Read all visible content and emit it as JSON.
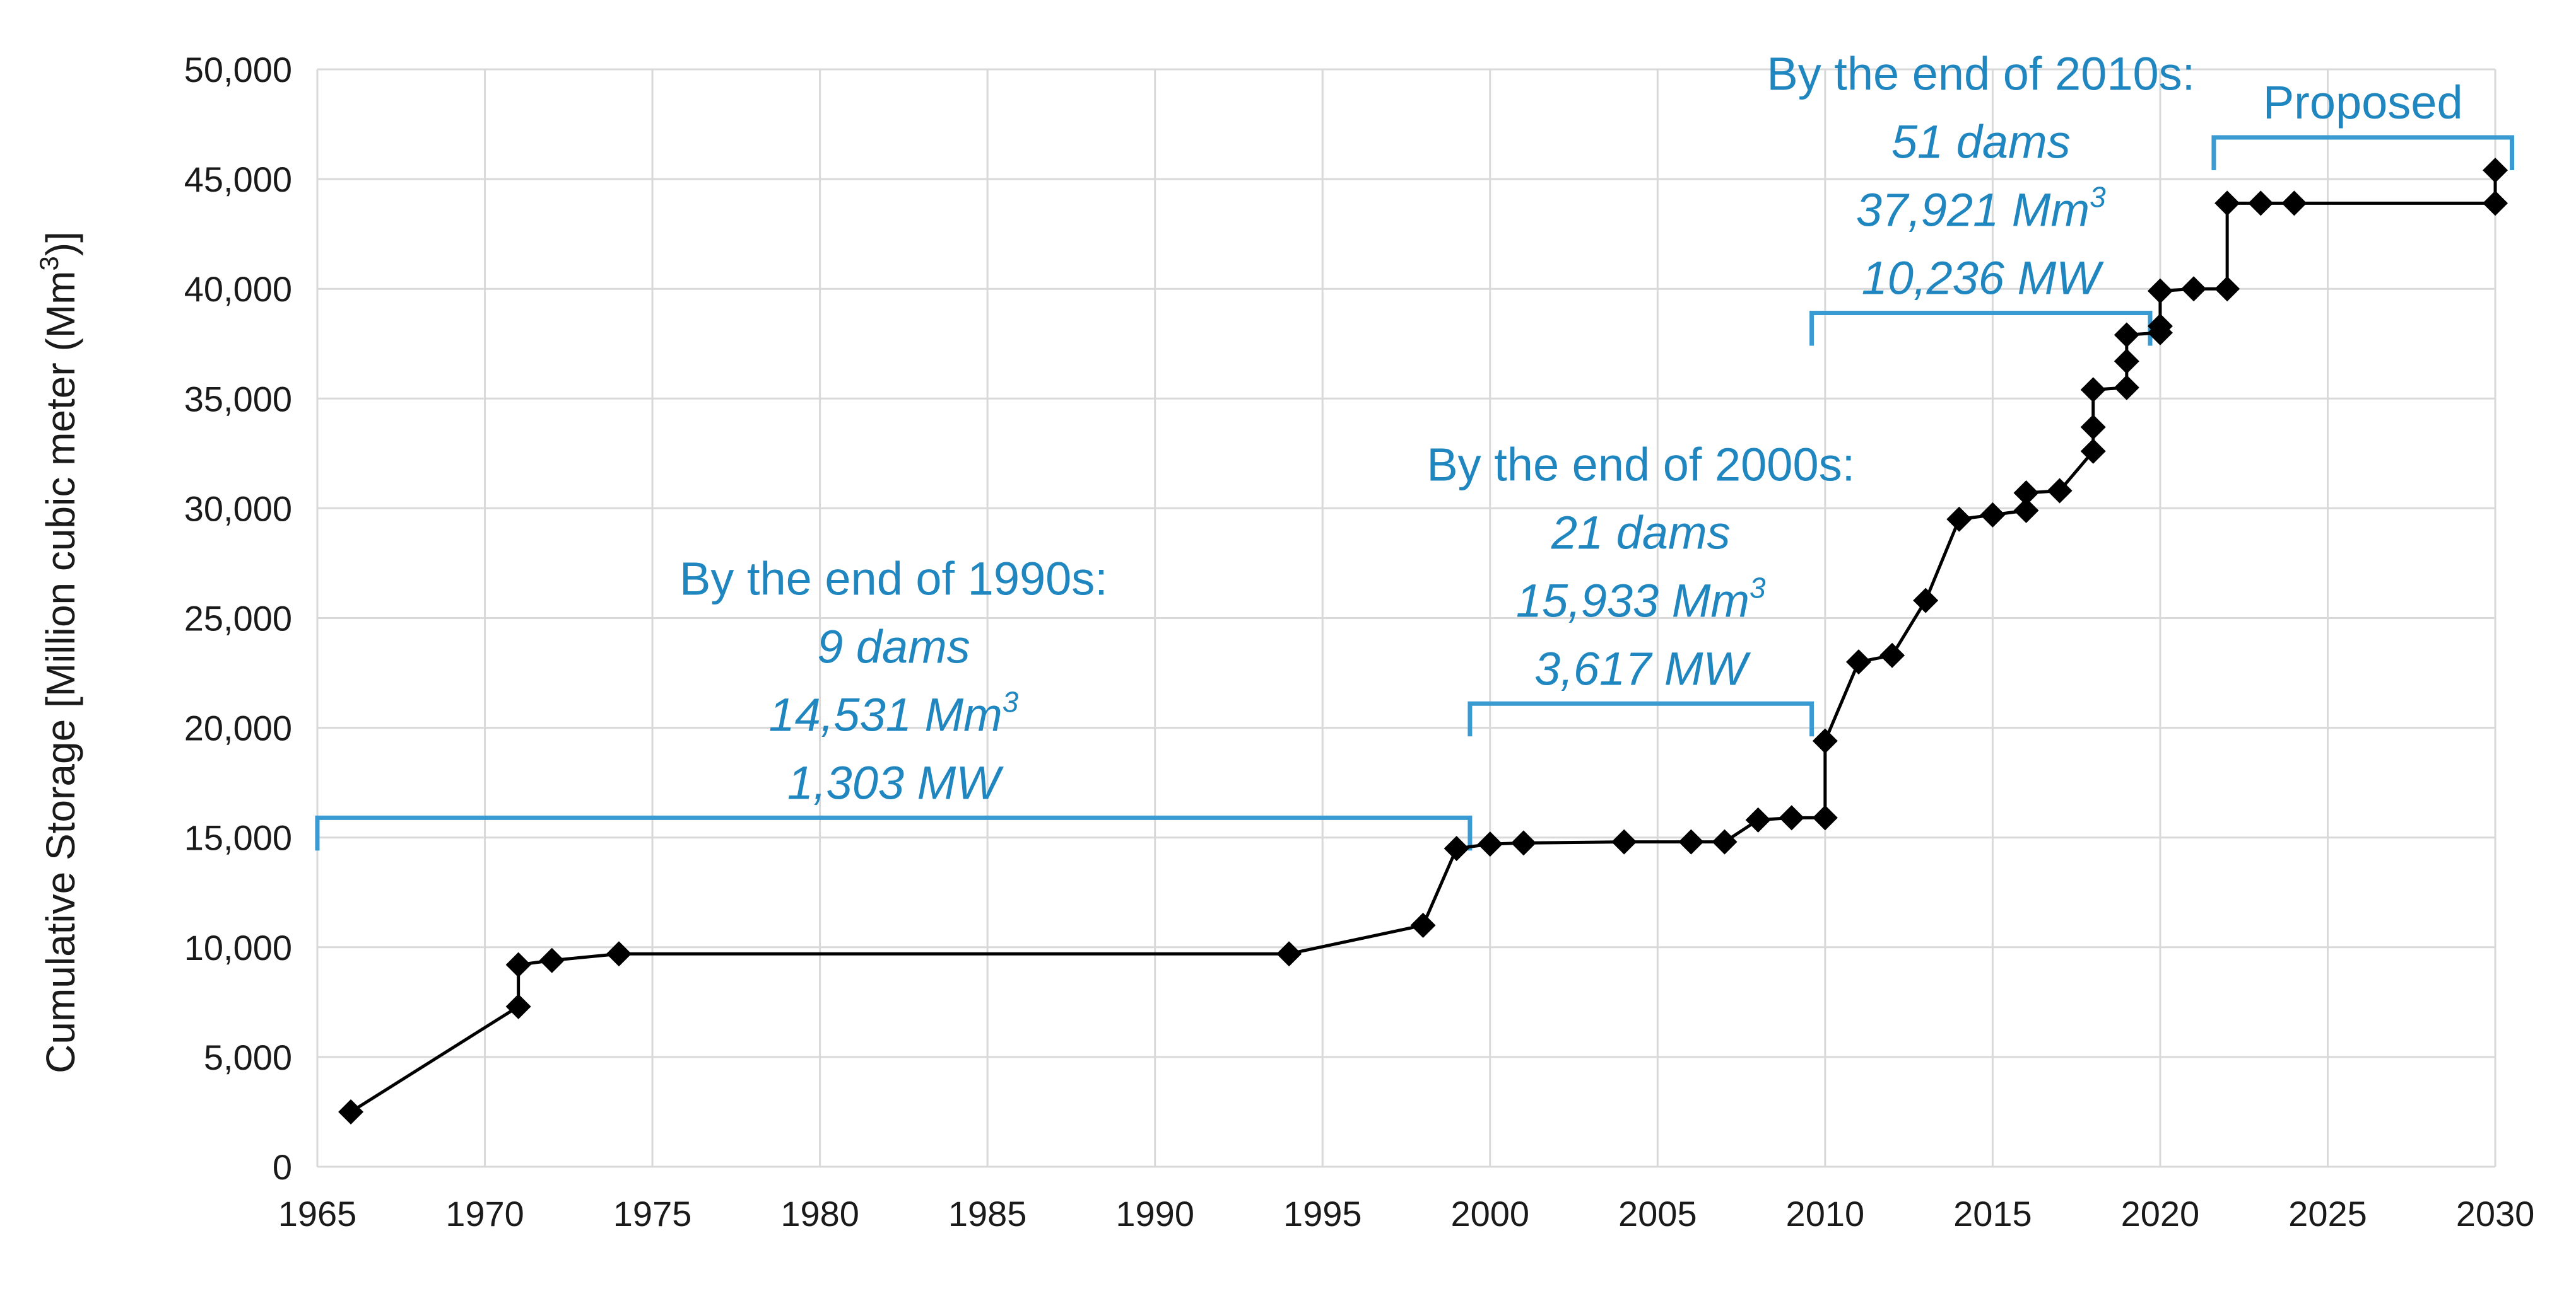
{
  "chart_data": {
    "type": "line",
    "ylabel_main": "Cumulative Storage [Million cubic meter (Mm",
    "ylabel_sup": "3",
    "ylabel_tail": ")]",
    "xlim": [
      1965,
      2030
    ],
    "ylim": [
      0,
      50000
    ],
    "x_ticks": [
      1965,
      1970,
      1975,
      1980,
      1985,
      1990,
      1995,
      2000,
      2005,
      2010,
      2015,
      2020,
      2025,
      2030
    ],
    "x_tick_labels": [
      "1965",
      "1970",
      "1975",
      "1980",
      "1985",
      "1990",
      "1995",
      "2000",
      "2005",
      "2010",
      "2015",
      "2020",
      "2025",
      "2030"
    ],
    "y_ticks": [
      0,
      5000,
      10000,
      15000,
      20000,
      25000,
      30000,
      35000,
      40000,
      45000,
      50000
    ],
    "y_tick_labels": [
      "0",
      "5,000",
      "10,000",
      "15,000",
      "20,000",
      "25,000",
      "30,000",
      "35,000",
      "40,000",
      "45,000",
      "50,000"
    ],
    "grid": true,
    "line_style": "step-connected line with diamond markers",
    "series": [
      {
        "points": [
          [
            1966,
            2500
          ],
          [
            1971,
            7300
          ],
          [
            1971,
            9200
          ],
          [
            1972,
            9400
          ],
          [
            1974,
            9700
          ],
          [
            1994,
            9700
          ],
          [
            1998,
            11000
          ],
          [
            1999,
            14500
          ],
          [
            2000,
            14700
          ],
          [
            2001,
            14750
          ],
          [
            2004,
            14800
          ],
          [
            2006,
            14800
          ],
          [
            2007,
            14800
          ],
          [
            2008,
            15800
          ],
          [
            2009,
            15900
          ],
          [
            2010,
            15900
          ],
          [
            2010,
            19400
          ],
          [
            2011,
            23000
          ],
          [
            2012,
            23300
          ],
          [
            2013,
            25800
          ],
          [
            2014,
            29500
          ],
          [
            2015,
            29700
          ],
          [
            2016,
            29900
          ],
          [
            2016,
            30700
          ],
          [
            2017,
            30800
          ],
          [
            2018,
            32600
          ],
          [
            2018,
            33700
          ],
          [
            2018,
            35400
          ],
          [
            2019,
            35500
          ],
          [
            2019,
            36700
          ],
          [
            2019,
            37900
          ],
          [
            2020,
            38000
          ],
          [
            2020,
            38300
          ],
          [
            2020,
            39900
          ],
          [
            2021,
            40000
          ],
          [
            2022,
            40000
          ],
          [
            2022,
            43900
          ],
          [
            2023,
            43900
          ],
          [
            2024,
            43900
          ],
          [
            2030,
            43900
          ],
          [
            2030,
            45400
          ]
        ]
      }
    ],
    "annotations": [
      {
        "bracket": [
          1965,
          1999.4
        ],
        "bracket_y": 15900,
        "lines": [
          "By the end of 1990s:",
          "9 dams",
          "14,531 Mm",
          "1,303 MW"
        ]
      },
      {
        "bracket": [
          1999.4,
          2009.6
        ],
        "bracket_y": 21100,
        "lines": [
          "By the end of 2000s:",
          "21 dams",
          "15,933 Mm",
          "3,617 MW"
        ]
      },
      {
        "bracket": [
          2009.6,
          2019.7
        ],
        "bracket_y": 38900,
        "lines": [
          "By the end of 2010s:",
          "51 dams",
          "37,921 Mm",
          "10,236 MW"
        ]
      },
      {
        "bracket": [
          2021.6,
          2030.5
        ],
        "bracket_y": 46900,
        "lines": [
          "Proposed"
        ]
      }
    ],
    "annotation_unit_sup": "3",
    "annotation_color": "#1f86bf",
    "bracket_color": "#3a9ad2",
    "series_color": "#000000"
  }
}
